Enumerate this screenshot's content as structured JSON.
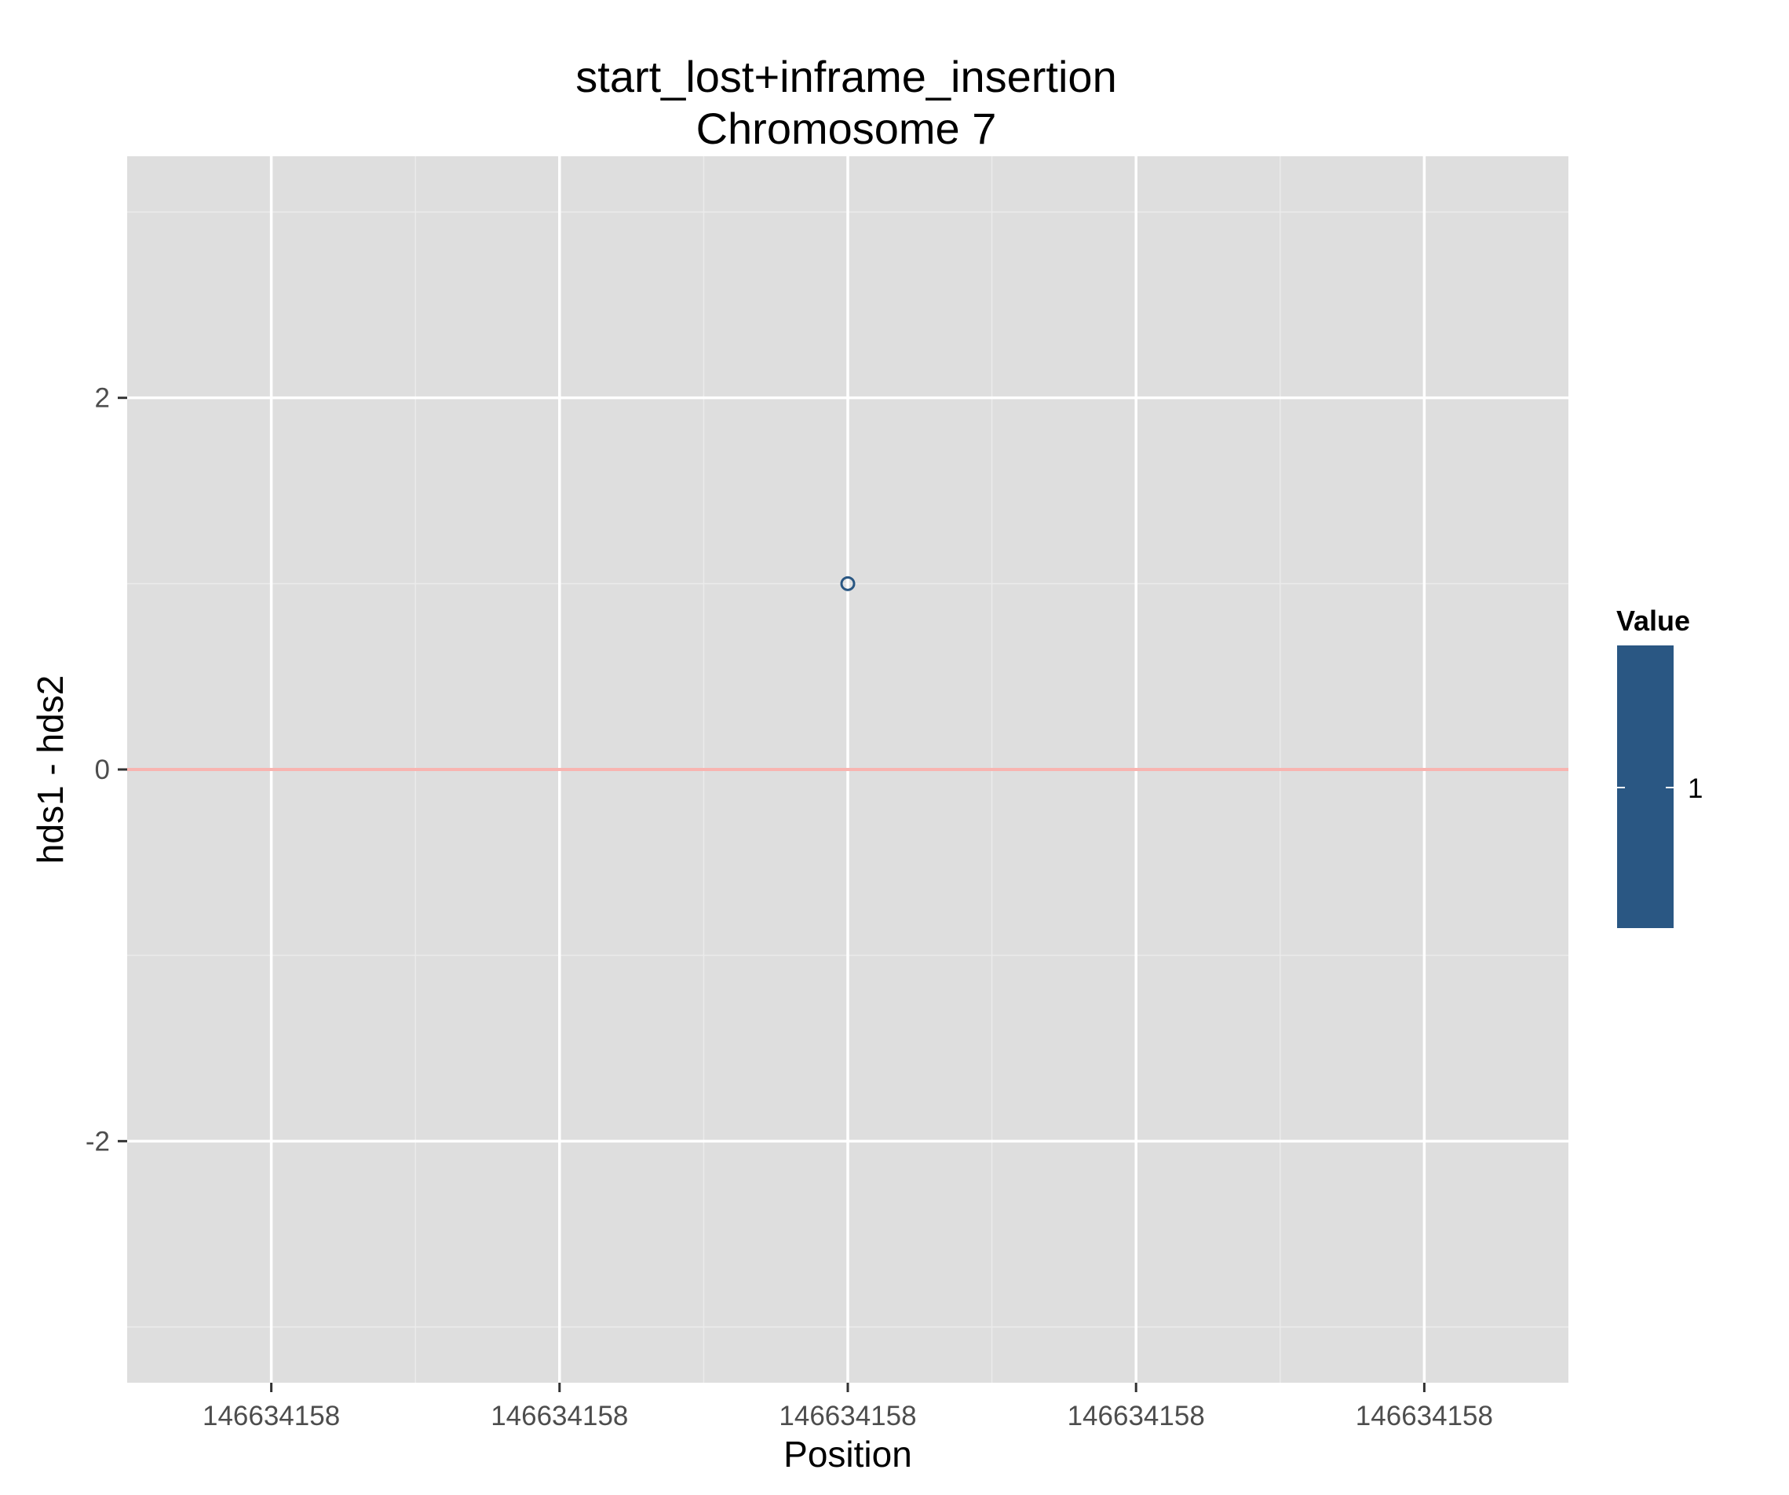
{
  "chart_data": {
    "type": "scatter",
    "title": "start_lost+inframe_insertion",
    "subtitle": "Chromosome 7",
    "xlabel": "Position",
    "ylabel": "hds1 - hds2",
    "x_tick_labels": [
      "146634158",
      "146634158",
      "146634158",
      "146634158",
      "146634158"
    ],
    "y_ticks": [
      -2,
      0,
      2
    ],
    "y_tick_labels": [
      "-2",
      "0",
      "2"
    ],
    "ylim": [
      -3.3,
      3.3
    ],
    "grid": true,
    "points": [
      {
        "x": 146634158,
        "y": 1,
        "value": 1
      }
    ],
    "reference_line": {
      "y": 0,
      "color": "#f8b4b0"
    },
    "legend": {
      "title": "Value",
      "placement": "right",
      "labels": [
        "1"
      ],
      "color": "#2a5783"
    },
    "colors": {
      "panel": "#dedede",
      "grid_major": "#ffffff",
      "point": "#2a5783"
    }
  }
}
